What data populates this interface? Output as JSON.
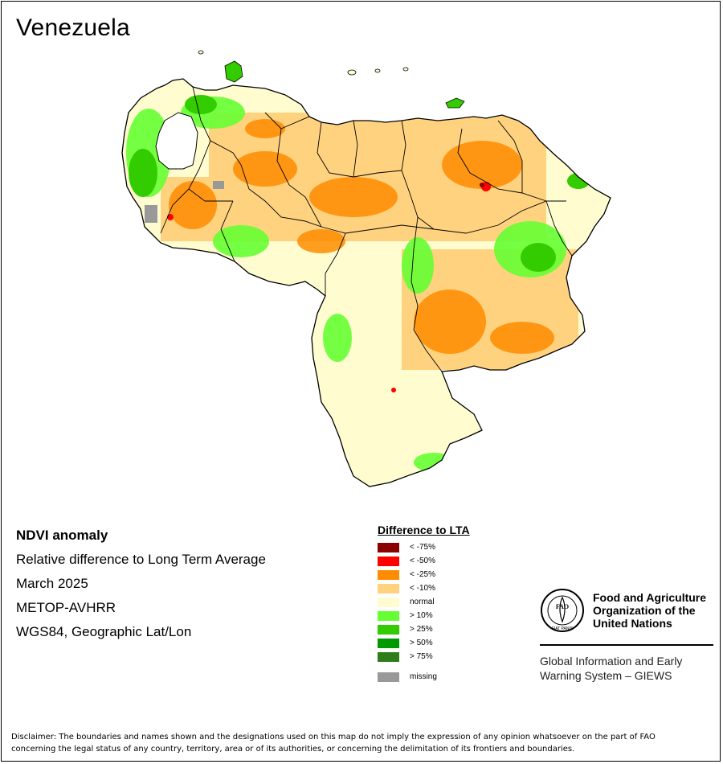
{
  "map": {
    "title": "Venezuela",
    "colors": {
      "below_75": "#8b0000",
      "below_50": "#ff0000",
      "below_25": "#ff8c00",
      "below_10": "#ffd27f",
      "normal": "#fffdd0",
      "above_10": "#66ff33",
      "above_25": "#33cc00",
      "above_50": "#009900",
      "above_75": "#2e7d1a",
      "missing": "#999999",
      "boundary": "#000000"
    }
  },
  "info": {
    "line1": "NDVI anomaly",
    "line2": "Relative difference to Long Term Average",
    "line3": "March 2025",
    "line4": "METOP-AVHRR",
    "line5": "WGS84, Geographic Lat/Lon"
  },
  "legend": {
    "title": "Difference to LTA",
    "items": [
      {
        "label": "< -75%",
        "color": "#8b0000"
      },
      {
        "label": "< -50%",
        "color": "#ff0000"
      },
      {
        "label": "< -25%",
        "color": "#ff8c00"
      },
      {
        "label": "< -10%",
        "color": "#ffd27f"
      },
      {
        "label": "normal",
        "color": "#fffdd0"
      },
      {
        "label": "> 10%",
        "color": "#66ff33"
      },
      {
        "label": "> 25%",
        "color": "#33cc00"
      },
      {
        "label": "> 50%",
        "color": "#009900"
      },
      {
        "label": "> 75%",
        "color": "#2e7d1a"
      },
      {
        "label": "missing",
        "color": "#999999"
      }
    ]
  },
  "fao": {
    "name_line1": "Food and Agriculture",
    "name_line2": "Organization of the",
    "name_line3": "United Nations",
    "logo_letters": "FAO",
    "logo_motto": "FIAT PANIS",
    "giews_line1": "Global Information and Early",
    "giews_line2": "Warning System – GIEWS"
  },
  "disclaimer": {
    "line1": "Disclaimer: The boundaries and names shown and the designations used on this map do not imply the expression of any opinion whatsoever on the part of FAO",
    "line2": "concerning the legal status of any country, territory, area or of its authorities, or concerning the delimitation of its frontiers and boundaries."
  }
}
